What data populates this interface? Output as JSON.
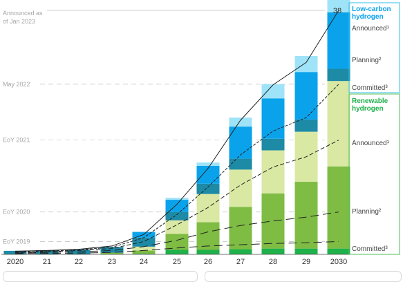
{
  "chart_data": {
    "type": "bar",
    "categories": [
      "2020",
      "21",
      "22",
      "23",
      "24",
      "25",
      "26",
      "27",
      "28",
      "29",
      "2030"
    ],
    "top_value_label": "38",
    "ylim": [
      0,
      38
    ],
    "stack_order": [
      "ren_committed",
      "ren_planning",
      "ren_announced",
      "low_committed",
      "low_planning",
      "low_announced"
    ],
    "series": [
      {
        "key": "ren_committed",
        "group": "Renewable hydrogen",
        "name": "Committed³",
        "color": "#1fb14a",
        "values": [
          0.05,
          0.05,
          0.05,
          0.05,
          0.1,
          0.7,
          0.7,
          0.8,
          0.9,
          0.9,
          0.9
        ]
      },
      {
        "key": "ren_planning",
        "group": "Renewable hydrogen",
        "name": "Planning²",
        "color": "#7ebc44",
        "values": [
          0,
          0,
          0,
          0.2,
          0.5,
          2.5,
          4.3,
          6.6,
          8.6,
          10.4,
          12.8
        ]
      },
      {
        "key": "ren_announced",
        "group": "Renewable hydrogen",
        "name": "Announced¹",
        "color": "#d9e8a3",
        "values": [
          0,
          0,
          0,
          0,
          0.6,
          2.1,
          4.4,
          5.8,
          6.7,
          7.8,
          13.3
        ]
      },
      {
        "key": "low_committed",
        "group": "Low-carbon hydrogen",
        "name": "Committed³",
        "color": "#1d8aa6",
        "values": [
          0.5,
          0.6,
          0.7,
          0.9,
          1.4,
          1.3,
          1.6,
          1.7,
          1.8,
          1.9,
          1.9
        ]
      },
      {
        "key": "low_planning",
        "group": "Low-carbon hydrogen",
        "name": "Planning²",
        "color": "#0aa3eb",
        "values": [
          0,
          0,
          0,
          0,
          0.9,
          1.9,
          2.8,
          5.0,
          6.3,
          7.4,
          8.8
        ]
      },
      {
        "key": "low_announced",
        "group": "Low-carbon hydrogen",
        "name": "Announced¹",
        "color": "#9fe3f8",
        "values": [
          0,
          0,
          0,
          0,
          0,
          0.3,
          0.5,
          1.4,
          2.2,
          2.5,
          2.8
        ]
      }
    ],
    "lines": [
      {
        "label": "Announced as of Jan 2023",
        "style": "solid",
        "values": [
          0.5,
          0.6,
          0.8,
          1.3,
          3.1,
          7.8,
          13.4,
          20.9,
          26.4,
          29.9,
          38
        ]
      },
      {
        "label": "May 2022",
        "style": "dense-dash",
        "values": [
          0.4,
          0.5,
          0.7,
          1.1,
          2.6,
          6.2,
          10.5,
          15.5,
          19.2,
          21.3,
          26.5
        ]
      },
      {
        "label": "EoY 2021",
        "style": "dash",
        "values": [
          0.3,
          0.4,
          0.6,
          0.9,
          2.0,
          4.6,
          7.3,
          10.8,
          13.6,
          15.2,
          17.8
        ]
      },
      {
        "label": "EoY 2020",
        "style": "long-dash",
        "values": [
          0.2,
          0.3,
          0.4,
          0.6,
          1.2,
          2.2,
          3.5,
          4.5,
          5.2,
          5.8,
          6.6
        ]
      },
      {
        "label": "EoY 2019",
        "style": "long-dash",
        "values": [
          0.1,
          0.15,
          0.2,
          0.3,
          0.6,
          1.0,
          1.3,
          1.5,
          1.7,
          1.8,
          2.0
        ]
      }
    ],
    "reference_labels": [
      {
        "text": "Announced as of Jan 2023",
        "lines": [
          "Announced as",
          "of Jan 2023"
        ],
        "value": 38
      },
      {
        "text": "May 2022",
        "value": 26.5
      },
      {
        "text": "EoY 2021",
        "value": 17.8
      },
      {
        "text": "EoY 2020",
        "value": 6.6
      },
      {
        "text": "EoY 2019",
        "value": 2.0
      }
    ],
    "legend_groups": [
      {
        "title_lines": [
          "Low-carbon",
          "hydrogen"
        ],
        "color": "#0aa3eb",
        "border": "#2fbfe9",
        "items": [
          "Announced¹",
          "Planning²",
          "Committed³"
        ]
      },
      {
        "title_lines": [
          "Renewable",
          "hydrogen"
        ],
        "color": "#1fb14a",
        "border": "#4cbd5f",
        "items": [
          "Announced¹",
          "Planning²",
          "Committed³"
        ]
      }
    ],
    "grid": false,
    "legend_position": "right"
  }
}
